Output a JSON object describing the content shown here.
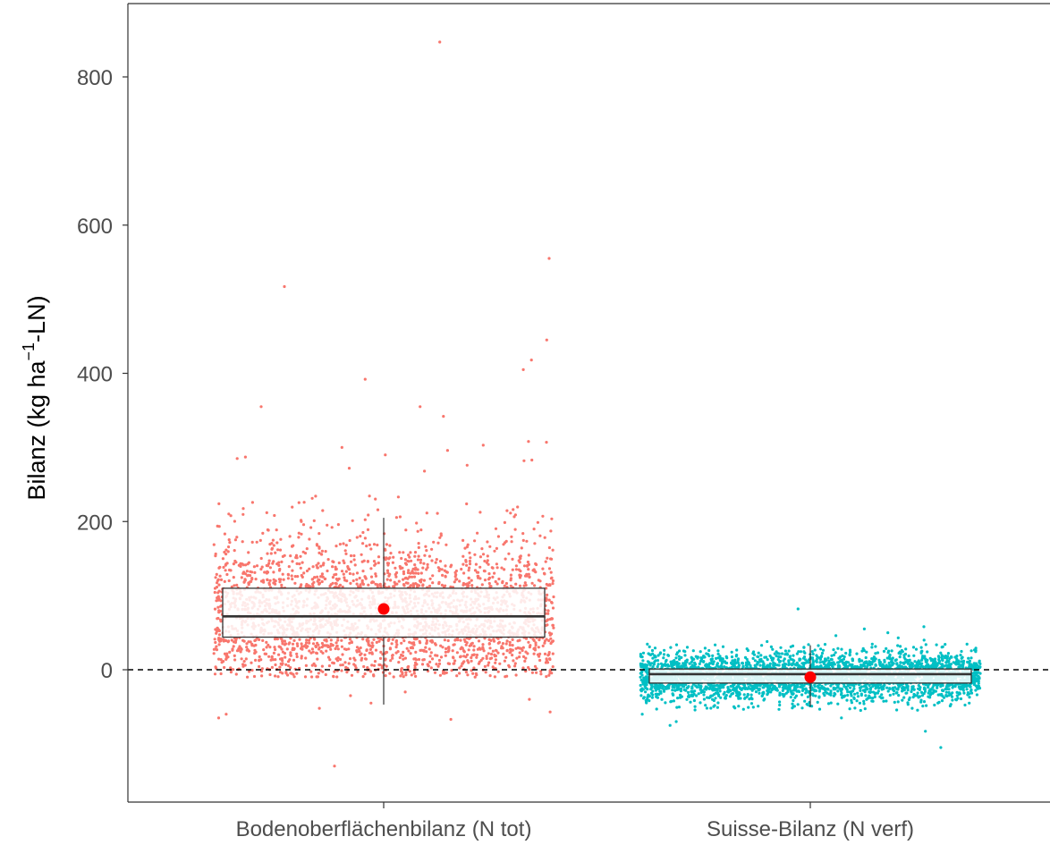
{
  "chart_data": {
    "type": "box",
    "title": "",
    "xlabel": "",
    "ylabel_parts": {
      "prefix": "Bilanz (kg ha",
      "superscript": "−1",
      "suffix": "-LN)"
    },
    "y_ticks": [
      0,
      200,
      400,
      600,
      800
    ],
    "ylim": [
      -180,
      890
    ],
    "reference_line": {
      "y": 0,
      "style": "dashed"
    },
    "categories": [
      "Bodenoberflächenbilanz (N tot)",
      "Suisse-Bilanz (N verf)"
    ],
    "series": [
      {
        "category": "Bodenoberflächenbilanz (N tot)",
        "color": "#F8766D",
        "n_points": 2600,
        "box": {
          "whisker_low": -47,
          "q1": 44,
          "median": 72,
          "q3": 110,
          "whisker_high": 205
        },
        "mean": 82,
        "jitter_range": [
          -10,
          235
        ],
        "outliers": [
          847,
          555,
          517,
          445,
          418,
          405,
          392,
          355,
          355,
          342,
          308,
          307,
          303,
          300,
          296,
          290,
          287,
          285,
          283,
          282,
          276,
          272,
          268,
          -30,
          -35,
          -40,
          -45,
          -52,
          -57,
          -60,
          -65,
          -67,
          -130
        ]
      },
      {
        "category": "Suisse-Bilanz (N verf)",
        "color": "#00BFC4",
        "n_points": 3400,
        "box": {
          "whisker_low": -50,
          "q1": -18,
          "median": -6,
          "q3": 1,
          "whisker_high": 33
        },
        "mean": -10,
        "jitter_range": [
          -55,
          35
        ],
        "outliers": [
          82,
          58,
          55,
          50,
          46,
          43,
          40,
          38,
          -60,
          -65,
          -70,
          -75,
          -83,
          -105
        ]
      }
    ],
    "mean_marker_color": "#FF0000",
    "grid": false
  }
}
